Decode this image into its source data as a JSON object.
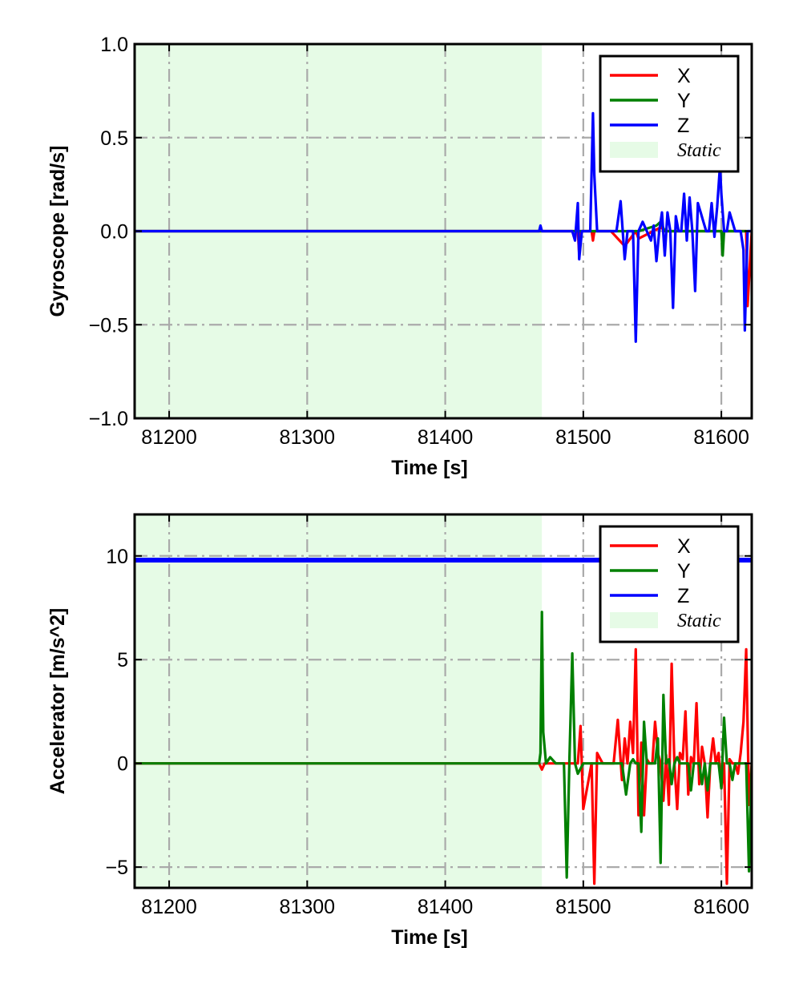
{
  "chart_data": [
    {
      "type": "line",
      "xlabel": "Time [s]",
      "ylabel": "Gyroscope [rad/s]",
      "xlim": [
        81175,
        81622
      ],
      "ylim": [
        -1.0,
        1.0
      ],
      "xticks": [
        81200,
        81300,
        81400,
        81500,
        81600
      ],
      "xtick_labels": [
        "81200",
        "81300",
        "81400",
        "81500",
        "81600"
      ],
      "yticks": [
        -1.0,
        -0.5,
        0.0,
        0.5,
        1.0
      ],
      "ytick_labels": [
        "−1.0",
        "−0.5",
        "0.0",
        "0.5",
        "1.0"
      ],
      "grid": true,
      "legend_position": "top-right",
      "static_region": {
        "label": "Static",
        "x_range": [
          81175,
          81470
        ],
        "color": "#e6fbe6"
      },
      "series": [
        {
          "name": "X",
          "color": "#ff0000",
          "x": [
            81175,
            81470,
            81496,
            81497,
            81498,
            81506,
            81507,
            81508,
            81520,
            81530,
            81538,
            81540,
            81556,
            81560,
            81600,
            81601,
            81602,
            81618,
            81619,
            81622
          ],
          "y": [
            0.0,
            0.0,
            0.0,
            -0.12,
            0.0,
            0.0,
            -0.05,
            0.0,
            0.0,
            -0.08,
            0.0,
            -0.04,
            0.02,
            0.0,
            0.0,
            -0.05,
            0.0,
            0.0,
            -0.4,
            0.0
          ]
        },
        {
          "name": "Y",
          "color": "#008000",
          "x": [
            81175,
            81470,
            81540,
            81553,
            81556,
            81559,
            81585,
            81600,
            81601,
            81602,
            81622
          ],
          "y": [
            0.0,
            0.0,
            0.0,
            0.03,
            0.05,
            0.0,
            0.0,
            0.0,
            -0.13,
            0.0,
            0.0
          ]
        },
        {
          "name": "Z",
          "color": "#0000ff",
          "x": [
            81175,
            81468,
            81469,
            81470,
            81471,
            81492,
            81494,
            81496,
            81497,
            81499,
            81505,
            81507,
            81508,
            81510,
            81518,
            81524,
            81527,
            81530,
            81532,
            81536,
            81538,
            81540,
            81543,
            81546,
            81549,
            81551,
            81553,
            81555,
            81557,
            81559,
            81561,
            81563,
            81565,
            81567,
            81569,
            81571,
            81573,
            81575,
            81577,
            81579,
            81581,
            81583,
            81585,
            81587,
            81589,
            81591,
            81593,
            81595,
            81597,
            81599,
            81600,
            81602,
            81604,
            81606,
            81610,
            81614,
            81616,
            81617,
            81619,
            81622
          ],
          "y": [
            0.0,
            0.0,
            0.03,
            0.0,
            0.0,
            0.0,
            -0.05,
            0.15,
            -0.15,
            0.0,
            0.0,
            0.63,
            0.3,
            0.0,
            0.0,
            0.0,
            0.16,
            -0.15,
            0.0,
            0.0,
            -0.59,
            0.0,
            0.05,
            0.0,
            -0.05,
            0.03,
            -0.16,
            0.0,
            0.1,
            -0.13,
            0.1,
            0.0,
            -0.41,
            0.08,
            0.0,
            0.0,
            0.2,
            -0.05,
            0.18,
            0.0,
            -0.32,
            0.15,
            0.1,
            0.05,
            0.0,
            0.0,
            0.15,
            -0.03,
            0.13,
            0.35,
            0.2,
            0.0,
            0.0,
            0.1,
            0.0,
            0.0,
            -0.1,
            -0.53,
            0.0,
            0.0
          ]
        }
      ]
    },
    {
      "type": "line",
      "xlabel": "Time [s]",
      "ylabel": "Accelerator [m/s^2]",
      "xlim": [
        81175,
        81622
      ],
      "ylim": [
        -6.0,
        12.0
      ],
      "xticks": [
        81200,
        81300,
        81400,
        81500,
        81600
      ],
      "xtick_labels": [
        "81200",
        "81300",
        "81400",
        "81500",
        "81600"
      ],
      "yticks": [
        -5,
        0,
        5,
        10
      ],
      "ytick_labels": [
        "−5",
        "0",
        "5",
        "10"
      ],
      "grid": true,
      "legend_position": "top-right",
      "static_region": {
        "label": "Static",
        "x_range": [
          81175,
          81470
        ],
        "color": "#e6fbe6"
      },
      "series": [
        {
          "name": "X",
          "color": "#ff0000",
          "x": [
            81175,
            81468,
            81470,
            81472,
            81490,
            81496,
            81498,
            81500,
            81506,
            81508,
            81510,
            81514,
            81518,
            81522,
            81525,
            81528,
            81530,
            81532,
            81534,
            81536,
            81538,
            81540,
            81542,
            81544,
            81546,
            81548,
            81550,
            81552,
            81554,
            81556,
            81558,
            81560,
            81562,
            81564,
            81566,
            81568,
            81570,
            81572,
            81574,
            81576,
            81578,
            81580,
            81582,
            81584,
            81586,
            81588,
            81590,
            81592,
            81594,
            81596,
            81598,
            81600,
            81602,
            81604,
            81606,
            81608,
            81610,
            81612,
            81614,
            81616,
            81618,
            81620,
            81622
          ],
          "y": [
            0.0,
            0.0,
            -0.3,
            0.0,
            0.0,
            0.0,
            1.8,
            -2.2,
            0.0,
            -5.8,
            0.5,
            0.0,
            0.0,
            0.0,
            2.1,
            -0.8,
            1.2,
            0.0,
            2.0,
            0.5,
            5.5,
            -2.5,
            1.0,
            -2.5,
            0.2,
            0.0,
            0.0,
            2.0,
            0.5,
            0.0,
            -1.8,
            0.4,
            -2.0,
            4.8,
            0.0,
            -2.2,
            0.5,
            0.2,
            2.5,
            -1.5,
            0.3,
            0.0,
            2.9,
            -1.0,
            0.8,
            0.0,
            -2.6,
            0.0,
            1.2,
            0.0,
            0.5,
            -1.2,
            0.0,
            -5.8,
            0.2,
            0.0,
            0.0,
            -0.5,
            0.5,
            2.0,
            5.5,
            -2.0,
            0.0
          ]
        },
        {
          "name": "Y",
          "color": "#008000",
          "x": [
            81175,
            81468,
            81469,
            81470,
            81471,
            81473,
            81476,
            81480,
            81486,
            81488,
            81490,
            81492,
            81494,
            81496,
            81500,
            81504,
            81508,
            81512,
            81516,
            81520,
            81524,
            81528,
            81531,
            81534,
            81536,
            81538,
            81540,
            81542,
            81544,
            81546,
            81548,
            81550,
            81552,
            81554,
            81556,
            81558,
            81560,
            81562,
            81564,
            81566,
            81568,
            81570,
            81572,
            81574,
            81576,
            81578,
            81580,
            81582,
            81584,
            81586,
            81588,
            81590,
            81592,
            81594,
            81596,
            81598,
            81600,
            81602,
            81604,
            81606,
            81608,
            81610,
            81612,
            81614,
            81616,
            81618,
            81620,
            81622
          ],
          "y": [
            0.0,
            0.0,
            0.5,
            7.3,
            1.5,
            0.0,
            0.3,
            0.0,
            0.0,
            -5.5,
            0.3,
            5.3,
            0.0,
            -0.5,
            0.0,
            0.0,
            0.0,
            0.0,
            0.0,
            0.0,
            0.0,
            0.0,
            -1.5,
            0.0,
            0.2,
            0.0,
            0.0,
            -3.3,
            2.0,
            0.0,
            0.0,
            0.0,
            0.0,
            1.2,
            -4.8,
            3.3,
            0.0,
            0.2,
            -1.0,
            0.0,
            0.3,
            0.0,
            0.0,
            0.0,
            0.0,
            -1.3,
            0.0,
            0.0,
            0.0,
            -1.0,
            0.0,
            -1.3,
            0.0,
            0.0,
            0.0,
            0.0,
            -1.2,
            2.2,
            0.0,
            0.0,
            -0.8,
            0.0,
            0.0,
            0.0,
            0.0,
            0.0,
            -5.2,
            0.0
          ]
        },
        {
          "name": "Z",
          "color": "#0000ff",
          "x": [
            81175,
            81622
          ],
          "y": [
            9.8,
            9.8
          ]
        }
      ]
    }
  ],
  "legend_texts": {
    "x": "X",
    "y": "Y",
    "z": "Z",
    "static": "Static"
  }
}
